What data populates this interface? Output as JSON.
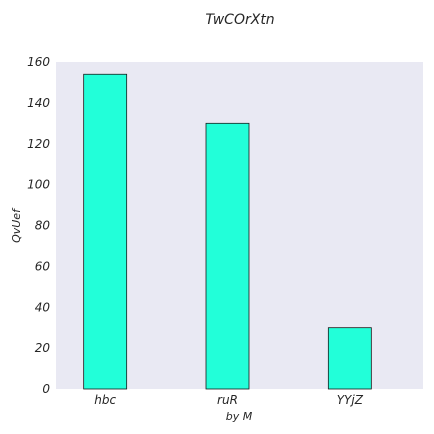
{
  "chart_data": {
    "type": "bar",
    "title": "TwCOrXtn",
    "xlabel": "by  M",
    "ylabel": "QvUef",
    "categories": [
      "hbc",
      "ruR",
      "YYjZ"
    ],
    "values": [
      154,
      130,
      30
    ],
    "ylim": [
      0,
      160
    ],
    "yticks": [
      0,
      20,
      40,
      60,
      80,
      100,
      120,
      140,
      160
    ],
    "grid": false,
    "colors": {
      "bar": "#22ffd9",
      "bar_edge": "#1a1a1a",
      "plot_background": "#e9e9f3"
    }
  }
}
